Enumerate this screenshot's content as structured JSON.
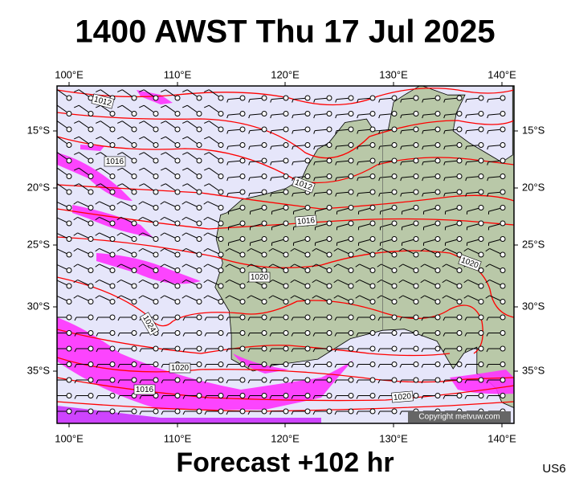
{
  "title": "1400 AWST Thu 17 Jul 2025",
  "longitude_labels": [
    "100°E",
    "110°E",
    "120°E",
    "130°E",
    "140°E"
  ],
  "latitude_labels": [
    "15°S",
    "20°S",
    "25°S",
    "30°S",
    "35°S"
  ],
  "isobar_labels": [
    1012,
    1016,
    1012,
    1016,
    1020,
    1020,
    1024,
    1020,
    1016,
    1020
  ],
  "copyright": "Copyright metvuw.com",
  "forecast": "Forecast +102 hr",
  "model": "US6"
}
